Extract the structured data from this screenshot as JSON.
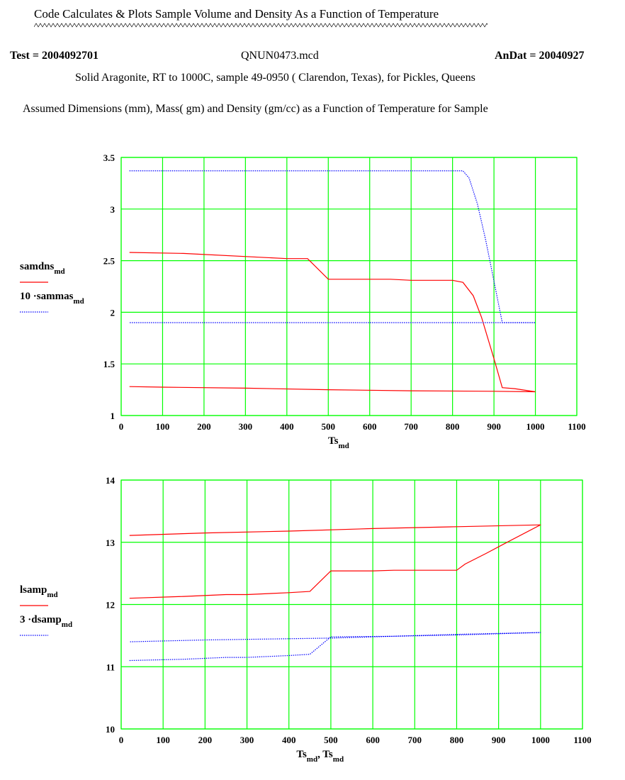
{
  "header": {
    "title": "Code Calculates & Plots Sample Volume and Density  As a Function of Temperature",
    "test": "Test = 2004092701",
    "filename": "QNUN0473.mcd",
    "andat": "AnDat = 20040927",
    "description": "Solid Aragonite, RT to 1000C, sample 49-0950 ( Clarendon, Texas),  for Pickles, Queens",
    "assumed": "Assumed  Dimensions (mm), Mass( gm)  and Density (gm/cc)  as a Function of Temperature for Sample"
  },
  "colors": {
    "grid": "#00ff00",
    "red": "#ff0000",
    "blue": "#0000ff"
  },
  "chart_data": [
    {
      "type": "line",
      "xlim": [
        0,
        1100
      ],
      "ylim": [
        1,
        3.5
      ],
      "xticks": [
        0,
        100,
        200,
        300,
        400,
        500,
        600,
        700,
        800,
        900,
        1000,
        1100
      ],
      "yticks": [
        1,
        1.5,
        2,
        2.5,
        3,
        3.5
      ],
      "ytick_labels": [
        "1",
        "1.5",
        "2",
        "2.5",
        "3",
        "3.5"
      ],
      "grid": true,
      "xlabel": "Ts",
      "xlabel_sub": "md",
      "legend": [
        {
          "label": "samdns",
          "sub": "md",
          "style": "solid"
        },
        {
          "label": "10 ·sammas",
          "sub": "md",
          "style": "dotted"
        }
      ],
      "series": [
        {
          "name": "samdns_md",
          "style": "solid",
          "x": [
            20,
            150,
            400,
            450,
            500,
            650,
            700,
            800,
            825,
            850,
            870,
            900,
            920,
            950,
            1000,
            900,
            700,
            500,
            300,
            100,
            20
          ],
          "y": [
            2.58,
            2.57,
            2.52,
            2.52,
            2.32,
            2.32,
            2.31,
            2.31,
            2.29,
            2.16,
            1.95,
            1.55,
            1.27,
            1.26,
            1.23,
            1.235,
            1.24,
            1.25,
            1.265,
            1.275,
            1.28
          ]
        },
        {
          "name": "10 sammas_md",
          "style": "dotted",
          "x": [
            20,
            800,
            825,
            840,
            860,
            880,
            900,
            920,
            950,
            1000,
            800,
            500,
            200,
            20
          ],
          "y": [
            3.37,
            3.37,
            3.37,
            3.3,
            3.05,
            2.7,
            2.3,
            1.9,
            1.9,
            1.9,
            1.9,
            1.9,
            1.9,
            1.9
          ]
        }
      ]
    },
    {
      "type": "line",
      "xlim": [
        0,
        1100
      ],
      "ylim": [
        10,
        14
      ],
      "xticks": [
        0,
        100,
        200,
        300,
        400,
        500,
        600,
        700,
        800,
        900,
        1000,
        1100
      ],
      "yticks": [
        10,
        11,
        12,
        13,
        14
      ],
      "ytick_labels": [
        "10",
        "11",
        "12",
        "13",
        "14"
      ],
      "grid": true,
      "xlabel": "Ts",
      "xlabel_sub": "md",
      "xlabel2": "Ts",
      "xlabel2_sub": "md",
      "legend": [
        {
          "label": "lsamp",
          "sub": "md",
          "style": "solid"
        },
        {
          "label": "3 ·dsamp",
          "sub": "md",
          "style": "dotted"
        }
      ],
      "series": [
        {
          "name": "lsamp_md",
          "style": "solid",
          "x": [
            20,
            150,
            250,
            300,
            400,
            450,
            500,
            600,
            650,
            800,
            820,
            870,
            920,
            1000,
            800,
            600,
            400,
            200,
            20
          ],
          "y": [
            12.1,
            12.13,
            12.16,
            12.16,
            12.19,
            12.21,
            12.54,
            12.54,
            12.55,
            12.55,
            12.65,
            12.82,
            13.0,
            13.28,
            13.25,
            13.22,
            13.18,
            13.15,
            13.11
          ]
        },
        {
          "name": "3 dsamp_md",
          "style": "dotted",
          "x": [
            20,
            150,
            250,
            300,
            400,
            450,
            500,
            650,
            800,
            1000,
            800,
            500,
            200,
            20
          ],
          "y": [
            11.1,
            11.12,
            11.15,
            11.15,
            11.18,
            11.2,
            11.48,
            11.49,
            11.51,
            11.55,
            11.52,
            11.46,
            11.43,
            11.4
          ]
        }
      ]
    }
  ]
}
